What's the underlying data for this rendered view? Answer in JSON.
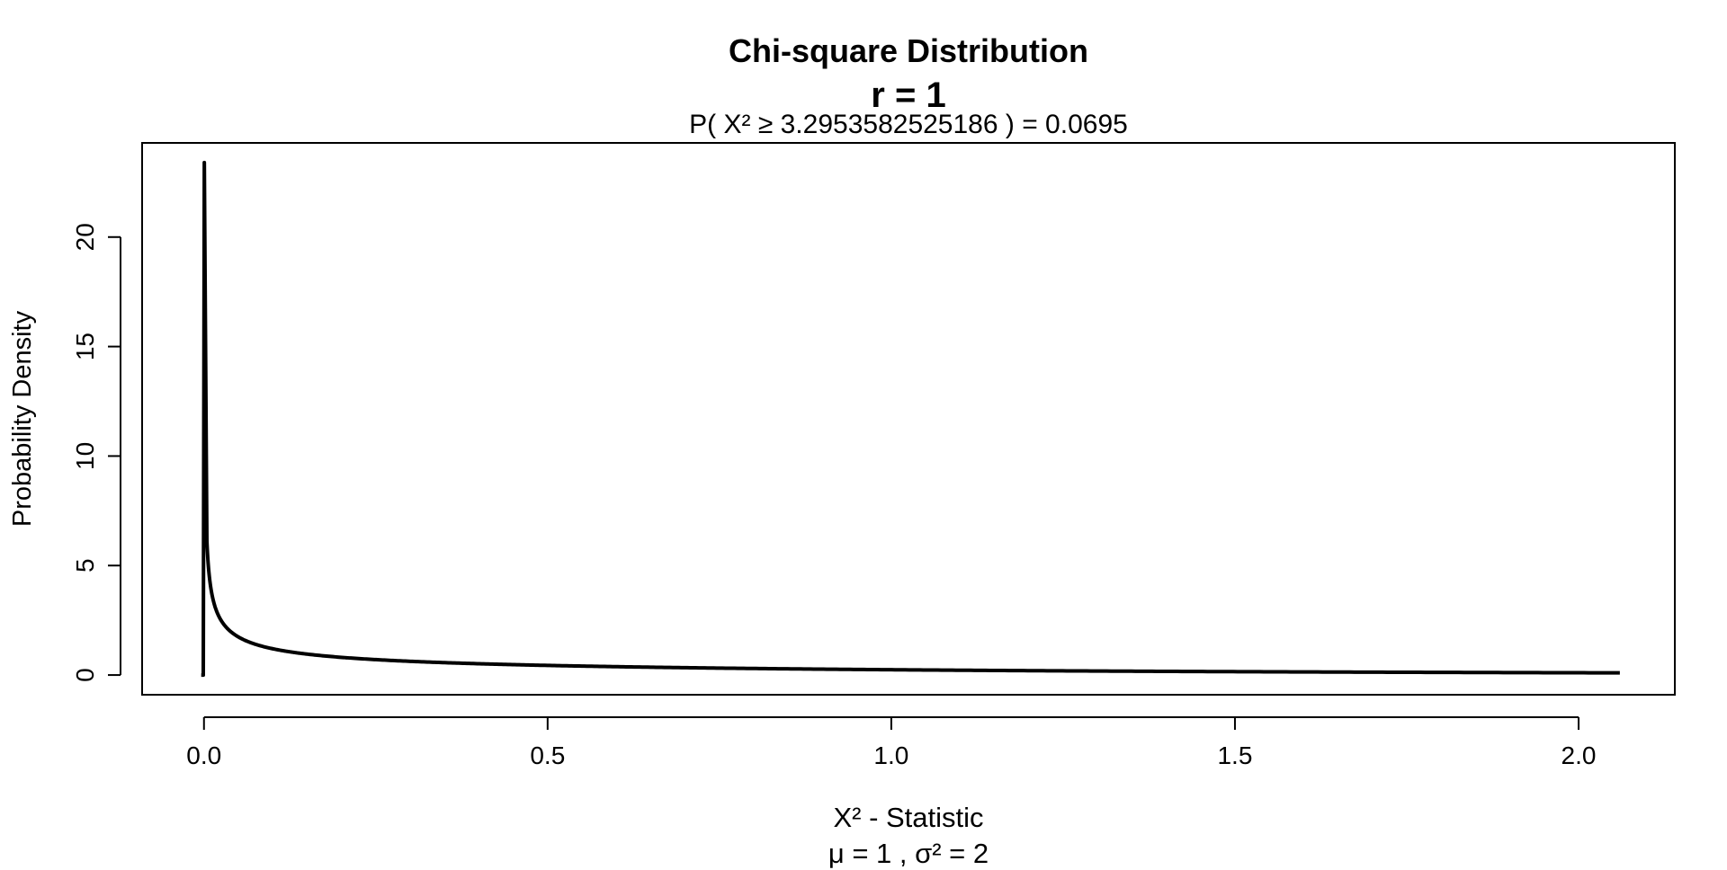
{
  "chart_data": {
    "type": "line",
    "title": "Chi-square Distribution",
    "subtitle": "r  =  1",
    "probability_label": "P(  X²  ≥  3.2953582525186  ) = 0.0695",
    "xlabel": "X² - Statistic",
    "ylabel": "Probability Density",
    "stats_label": "μ =  1 , σ² =  2",
    "degrees_of_freedom": 1,
    "xlim": [
      -0.09,
      2.14
    ],
    "ylim": [
      -0.9,
      24.3
    ],
    "x_ticks": [
      0,
      0.5,
      1,
      1.5,
      2
    ],
    "x_tick_labels": [
      "0.0",
      "0.5",
      "1.0",
      "1.5",
      "2.0"
    ],
    "y_ticks": [
      0,
      5,
      10,
      15,
      20
    ],
    "y_tick_labels": [
      "0",
      "5",
      "10",
      "15",
      "20"
    ],
    "x_range": [
      0.0005,
      2.06
    ],
    "y_peak": 23.4,
    "grid": false,
    "series": [
      {
        "color": "#000000"
      }
    ]
  }
}
